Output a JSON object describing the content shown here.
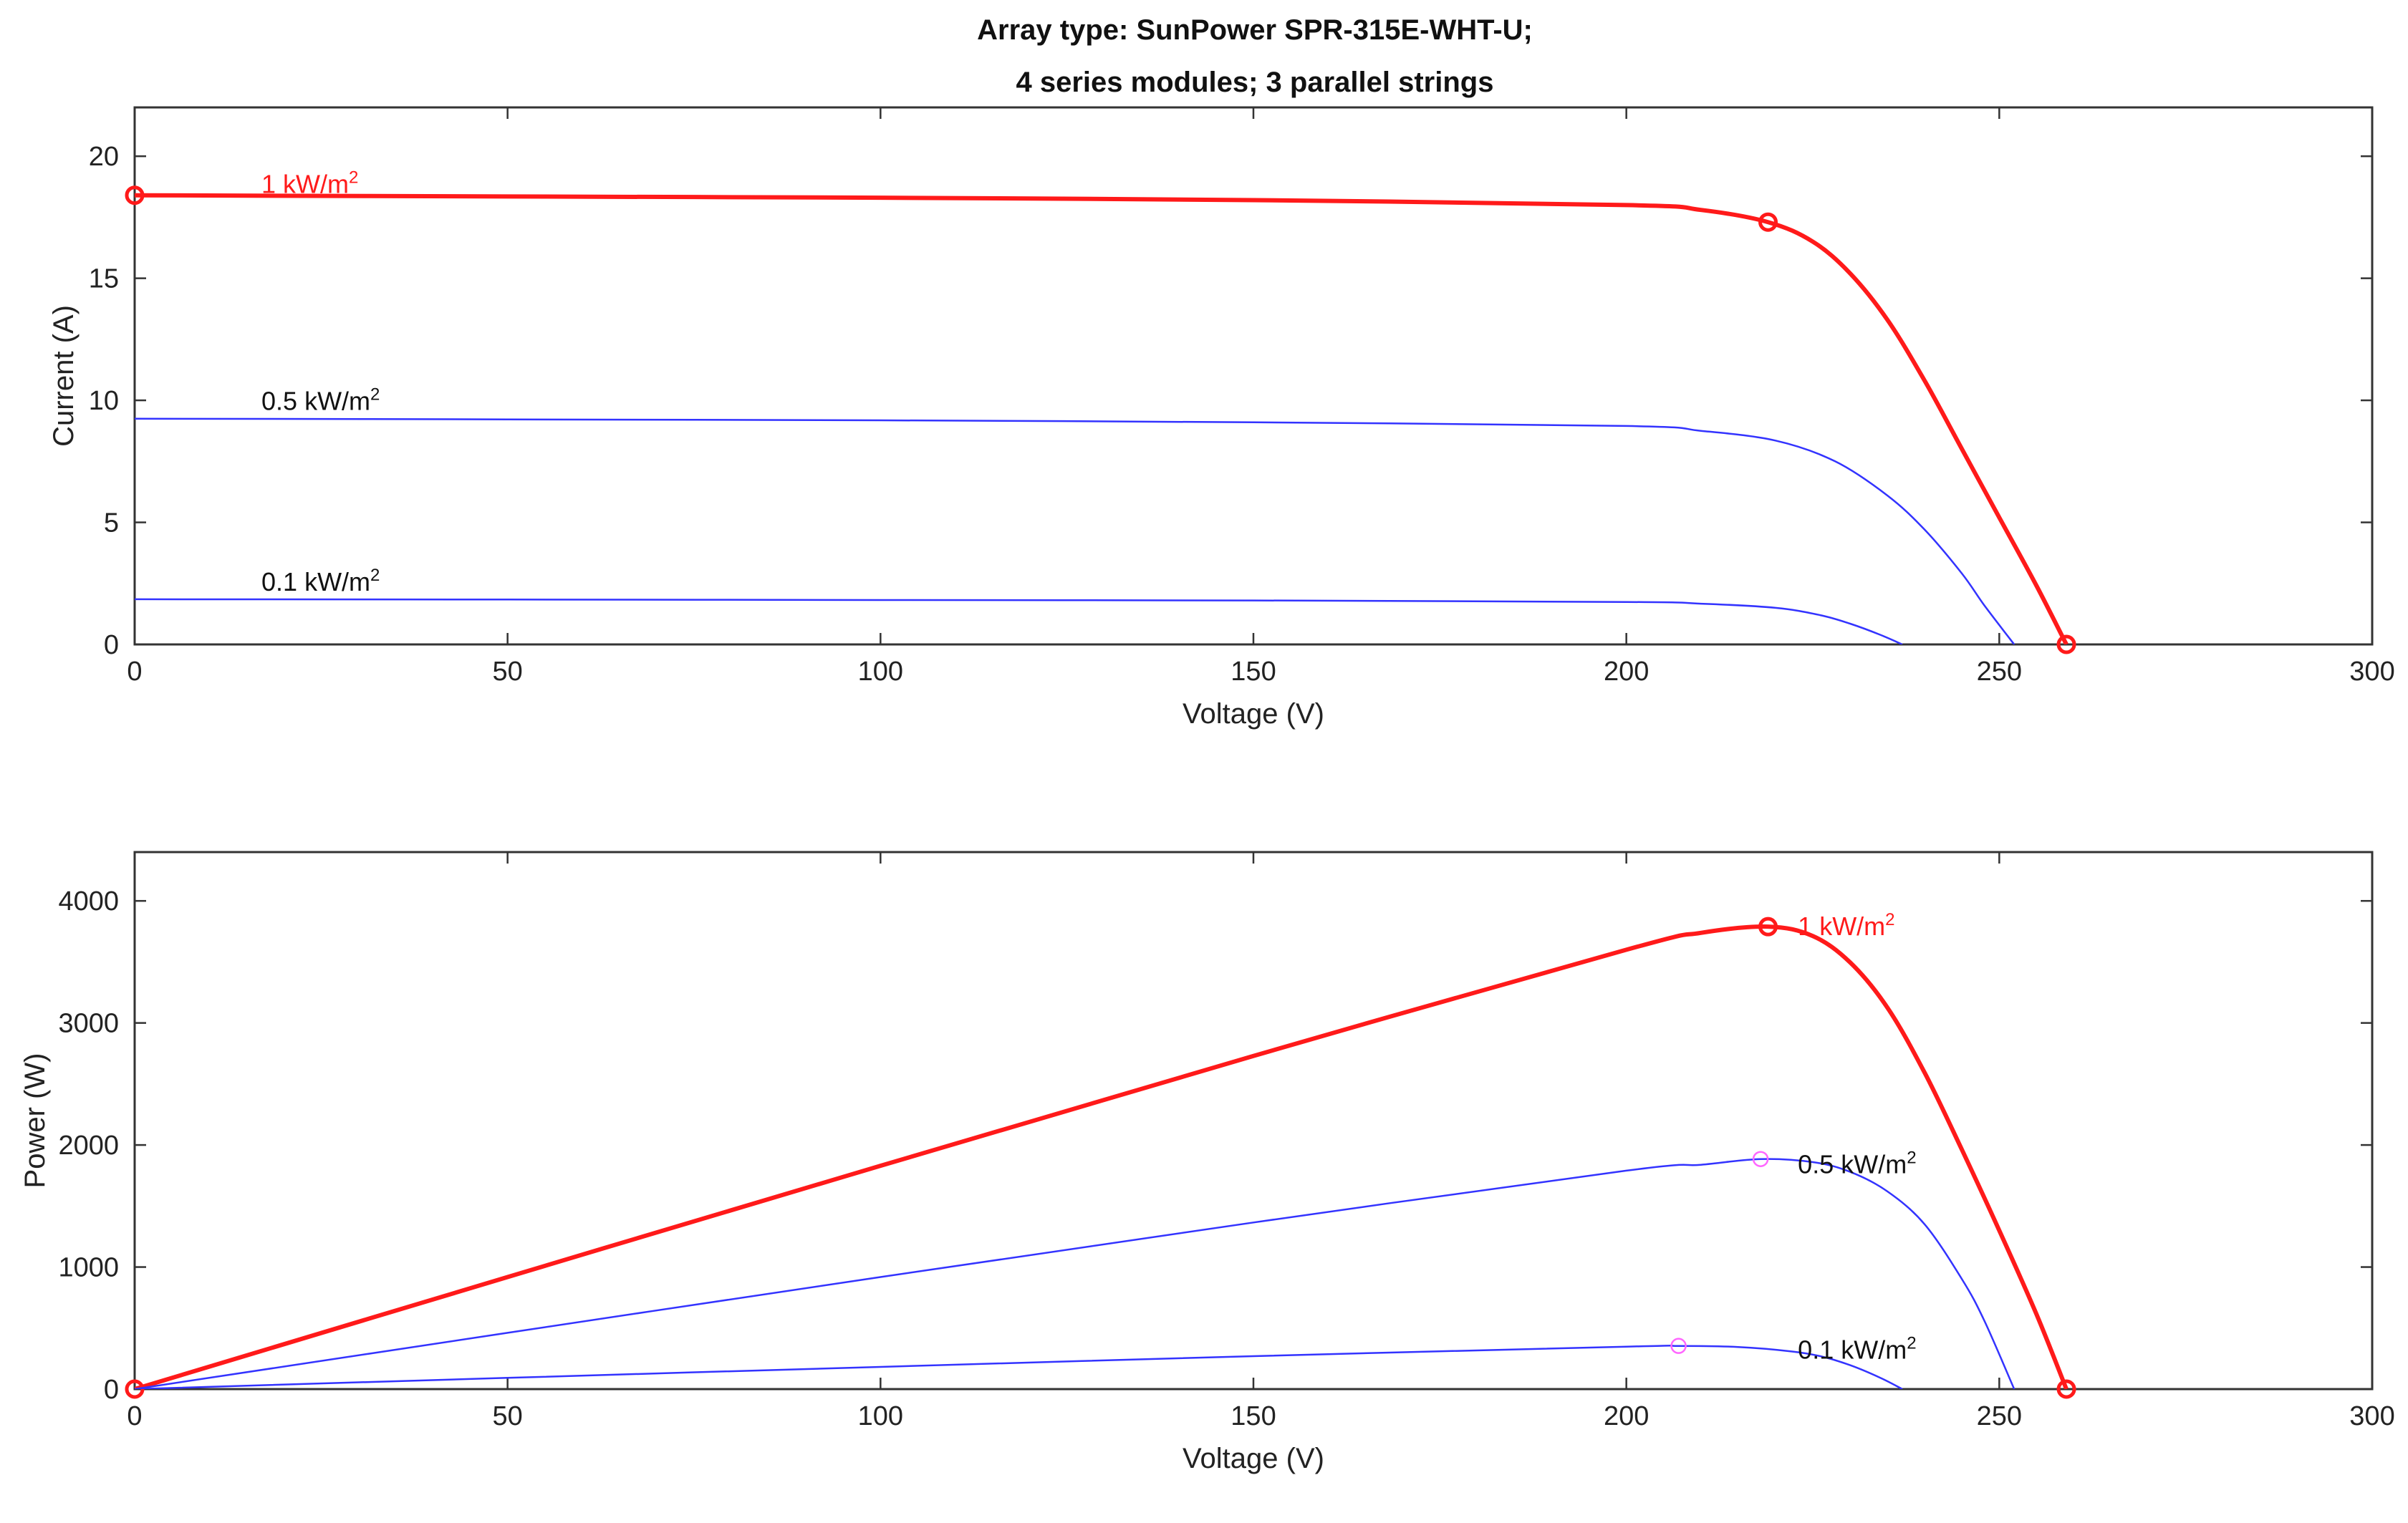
{
  "figure_title": {
    "line1": "Array type: SunPower SPR-315E-WHT-U;",
    "line2": "4 series modules; 3 parallel strings"
  },
  "colors": {
    "high": "#ff1a1a",
    "low": "#3333ff",
    "mpp_marker_low": "#ff66ff",
    "axis": "#333333"
  },
  "chart_data": [
    {
      "type": "line",
      "title": "Array type: SunPower SPR-315E-WHT-U; 4 series modules; 3 parallel strings",
      "xlabel": "Voltage (V)",
      "ylabel": "Current (A)",
      "xlim": [
        0,
        300
      ],
      "ylim": [
        0,
        22
      ],
      "xticks": [
        0,
        50,
        100,
        150,
        200,
        250,
        300
      ],
      "yticks": [
        0,
        5,
        10,
        15,
        20
      ],
      "grid": false,
      "series": [
        {
          "name": "1 kW/m2",
          "label_text": "1 kW/m",
          "label_sup": "2",
          "label_at": [
            17,
            18.5
          ],
          "color_key": "high",
          "thick": true,
          "x": [
            0,
            50,
            100,
            150,
            200,
            210,
            219,
            225,
            230,
            235,
            240,
            245,
            250,
            255,
            259
          ],
          "y": [
            18.4,
            18.35,
            18.3,
            18.2,
            18.0,
            17.8,
            17.3,
            16.5,
            15.2,
            13.3,
            10.8,
            8.0,
            5.2,
            2.4,
            0
          ],
          "markers": [
            [
              0,
              18.4
            ],
            [
              219,
              17.3
            ],
            [
              259,
              0
            ]
          ],
          "marker_color_key": "high"
        },
        {
          "name": "0.5 kW/m2",
          "label_text": "0.5 kW/m",
          "label_sup": "2",
          "label_at": [
            17,
            9.6
          ],
          "color_key": "low",
          "thick": false,
          "x": [
            0,
            50,
            100,
            150,
            200,
            210,
            220,
            228,
            235,
            240,
            245,
            248,
            252
          ],
          "y": [
            9.25,
            9.22,
            9.18,
            9.1,
            8.95,
            8.75,
            8.35,
            7.5,
            6.1,
            4.7,
            2.9,
            1.6,
            0
          ],
          "markers": [],
          "marker_color_key": "low"
        },
        {
          "name": "0.1 kW/m2",
          "label_text": "0.1 kW/m",
          "label_sup": "2",
          "label_at": [
            17,
            2.2
          ],
          "color_key": "low",
          "thick": false,
          "x": [
            0,
            50,
            100,
            150,
            200,
            210,
            220,
            226,
            230,
            234,
            237
          ],
          "y": [
            1.85,
            1.84,
            1.82,
            1.8,
            1.74,
            1.67,
            1.5,
            1.2,
            0.85,
            0.4,
            0
          ],
          "markers": [],
          "marker_color_key": "low"
        }
      ]
    },
    {
      "type": "line",
      "title": "",
      "xlabel": "Voltage (V)",
      "ylabel": "Power (W)",
      "xlim": [
        0,
        300
      ],
      "ylim": [
        0,
        4400
      ],
      "xticks": [
        0,
        50,
        100,
        150,
        200,
        250,
        300
      ],
      "yticks": [
        0,
        1000,
        2000,
        3000,
        4000
      ],
      "grid": false,
      "series": [
        {
          "name": "1 kW/m2",
          "label_text": "1 kW/m",
          "label_sup": "2",
          "label_at": [
            223,
            3720
          ],
          "color_key": "high",
          "thick": true,
          "x": [
            0,
            50,
            100,
            150,
            200,
            210,
            219,
            225,
            230,
            235,
            240,
            245,
            250,
            255,
            259
          ],
          "y": [
            0,
            918,
            1830,
            2730,
            3600,
            3738,
            3789,
            3712,
            3496,
            3126,
            2592,
            1960,
            1300,
            612,
            0
          ],
          "markers": [
            [
              0,
              0
            ],
            [
              219,
              3789
            ],
            [
              259,
              0
            ]
          ],
          "marker_color_key": "high"
        },
        {
          "name": "0.5 kW/m2",
          "label_text": "0.5 kW/m",
          "label_sup": "2",
          "label_at": [
            223,
            1770
          ],
          "color_key": "low",
          "thick": false,
          "x": [
            0,
            50,
            100,
            150,
            200,
            210,
            218,
            225,
            230,
            235,
            240,
            245,
            248,
            252
          ],
          "y": [
            0,
            461,
            918,
            1365,
            1790,
            1838,
            1885,
            1860,
            1780,
            1620,
            1350,
            900,
            560,
            0
          ],
          "markers": [
            [
              218,
              1885
            ]
          ],
          "marker_color_key": "mpp_marker_low"
        },
        {
          "name": "0.1 kW/m2",
          "label_text": "0.1 kW/m",
          "label_sup": "2",
          "label_at": [
            223,
            250
          ],
          "color_key": "low",
          "thick": false,
          "x": [
            0,
            50,
            100,
            150,
            200,
            207,
            215,
            222,
            226,
            230,
            234,
            237
          ],
          "y": [
            0,
            92,
            182,
            270,
            348,
            354,
            345,
            310,
            270,
            196,
            94,
            0
          ],
          "markers": [
            [
              207,
              354
            ]
          ],
          "marker_color_key": "mpp_marker_low"
        }
      ]
    }
  ]
}
